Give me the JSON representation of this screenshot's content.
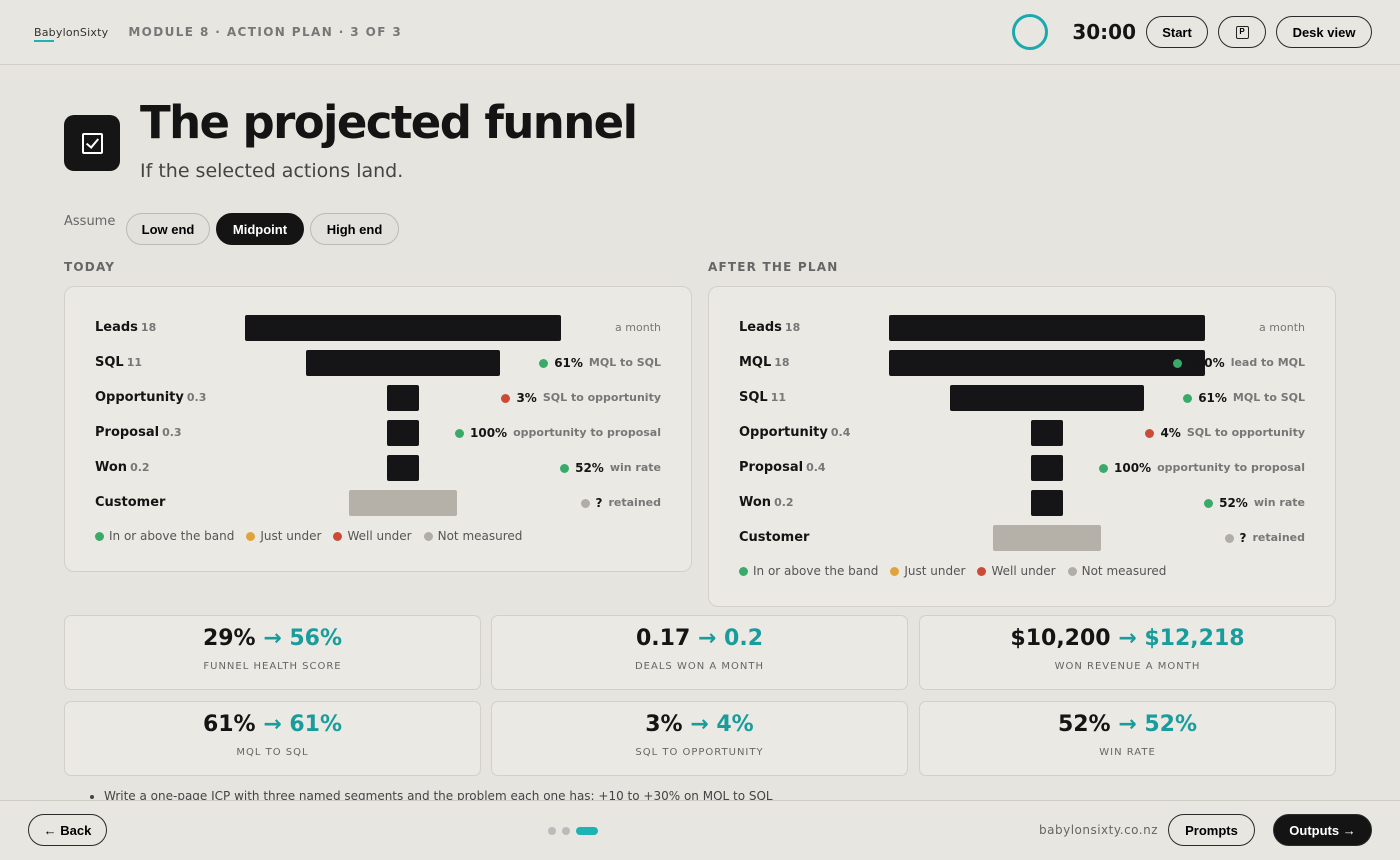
{
  "header": {
    "logo": "BabylonSixty",
    "module": "MODULE 8 · ACTION PLAN · 3 OF 3",
    "timer": "30:00",
    "start_label": "Start",
    "notes_icon_glyph": "P",
    "desk_view_label": "Desk view"
  },
  "hero": {
    "title": "The projected funnel",
    "subtitle": "If the selected actions land."
  },
  "assume": {
    "label": "Assume",
    "options": [
      "Low end",
      "Midpoint",
      "High end"
    ],
    "selected": "Midpoint"
  },
  "colors": {
    "green": "#3aaa6a",
    "amber": "#e0a43a",
    "red": "#cc4b37",
    "grey": "#b0ada6",
    "teal": "#1bb3b3"
  },
  "today": {
    "heading": "TODAY",
    "rows": [
      {
        "label": "Leads",
        "count": "18",
        "value": 18,
        "right_text": "a month"
      },
      {
        "label": "SQL",
        "count": "11",
        "value": 11,
        "pct": "61%",
        "metric": "MQL to SQL",
        "status": "green"
      },
      {
        "label": "Opportunity",
        "count": "0.3",
        "value": 0.3,
        "pct": "3%",
        "metric": "SQL to opportunity",
        "status": "red"
      },
      {
        "label": "Proposal",
        "count": "0.3",
        "value": 0.3,
        "pct": "100%",
        "metric": "opportunity to proposal",
        "status": "green"
      },
      {
        "label": "Won",
        "count": "0.2",
        "value": 0.2,
        "pct": "52%",
        "metric": "win rate",
        "status": "green"
      },
      {
        "label": "Customer",
        "count": "",
        "value": null,
        "pct": "?",
        "metric": "retained",
        "status": "grey"
      }
    ]
  },
  "after": {
    "heading": "AFTER THE PLAN",
    "rows": [
      {
        "label": "Leads",
        "count": "18",
        "value": 18,
        "right_text": "a month"
      },
      {
        "label": "MQL",
        "count": "18",
        "value": 18,
        "pct": "100%",
        "metric": "lead to MQL",
        "status": "green"
      },
      {
        "label": "SQL",
        "count": "11",
        "value": 11,
        "pct": "61%",
        "metric": "MQL to SQL",
        "status": "green"
      },
      {
        "label": "Opportunity",
        "count": "0.4",
        "value": 0.4,
        "pct": "4%",
        "metric": "SQL to opportunity",
        "status": "red"
      },
      {
        "label": "Proposal",
        "count": "0.4",
        "value": 0.4,
        "pct": "100%",
        "metric": "opportunity to proposal",
        "status": "green"
      },
      {
        "label": "Won",
        "count": "0.2",
        "value": 0.2,
        "pct": "52%",
        "metric": "win rate",
        "status": "green"
      },
      {
        "label": "Customer",
        "count": "",
        "value": null,
        "pct": "?",
        "metric": "retained",
        "status": "grey"
      }
    ]
  },
  "legend": [
    {
      "label": "In or above the band",
      "status": "green"
    },
    {
      "label": "Just under",
      "status": "amber"
    },
    {
      "label": "Well under",
      "status": "red"
    },
    {
      "label": "Not measured",
      "status": "grey"
    }
  ],
  "kpis": [
    {
      "from": "29%",
      "to": "56%",
      "caption": "FUNNEL HEALTH SCORE"
    },
    {
      "from": "0.17",
      "to": "0.2",
      "caption": "DEALS WON A MONTH"
    },
    {
      "from": "$10,200",
      "to": "$12,218",
      "caption": "WON REVENUE A MONTH"
    },
    {
      "from": "61%",
      "to": "61%",
      "caption": "MQL TO SQL"
    },
    {
      "from": "3%",
      "to": "4%",
      "caption": "SQL TO OPPORTUNITY"
    },
    {
      "from": "52%",
      "to": "52%",
      "caption": "WIN RATE"
    }
  ],
  "arrow": "→",
  "notes": [
    "Write a one-page ICP with three named segments and the problem each one has: +10 to +30% on MQL to SQL"
  ],
  "footer": {
    "back_label": "← Back",
    "site": "babylonsixty.co.nz",
    "prompts_label": "Prompts",
    "outputs_label": "Outputs →",
    "pages": 3,
    "current_page": 3
  }
}
